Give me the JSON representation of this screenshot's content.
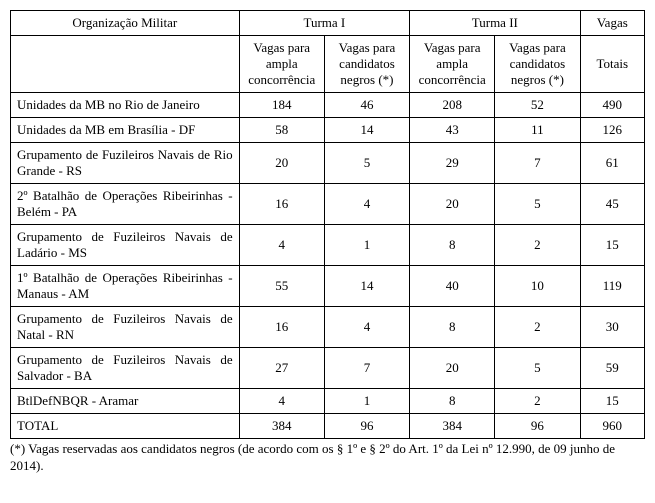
{
  "table": {
    "header": {
      "org": "Organização Militar",
      "turma1": "Turma I",
      "turma2": "Turma II",
      "vagas": "Vagas",
      "sub_ampla": "Vagas para ampla concorrência",
      "sub_ampla2": "Vagas para ampla concorrência",
      "sub_negros": "Vagas para candidatos negros (*)",
      "totais": "Totais"
    },
    "rows": [
      {
        "org": "Unidades da MB no Rio de Janeiro",
        "t1a": "184",
        "t1n": "46",
        "t2a": "208",
        "t2n": "52",
        "tot": "490"
      },
      {
        "org": "Unidades da MB em Brasília - DF",
        "t1a": "58",
        "t1n": "14",
        "t2a": "43",
        "t2n": "11",
        "tot": "126"
      },
      {
        "org": "Grupamento de Fuzileiros Navais de Rio Grande - RS",
        "t1a": "20",
        "t1n": "5",
        "t2a": "29",
        "t2n": "7",
        "tot": "61"
      },
      {
        "org": "2º Batalhão de Operações Ribeirinhas - Belém - PA",
        "t1a": "16",
        "t1n": "4",
        "t2a": "20",
        "t2n": "5",
        "tot": "45"
      },
      {
        "org": "Grupamento de Fuzileiros Navais de Ladário - MS",
        "t1a": "4",
        "t1n": "1",
        "t2a": "8",
        "t2n": "2",
        "tot": "15"
      },
      {
        "org": "1º Batalhão de Operações Ribeirinhas - Manaus - AM",
        "t1a": "55",
        "t1n": "14",
        "t2a": "40",
        "t2n": "10",
        "tot": "119"
      },
      {
        "org": "Grupamento de Fuzileiros Navais de Natal - RN",
        "t1a": "16",
        "t1n": "4",
        "t2a": "8",
        "t2n": "2",
        "tot": "30"
      },
      {
        "org": "Grupamento de Fuzileiros Navais de Salvador - BA",
        "t1a": "27",
        "t1n": "7",
        "t2a": "20",
        "t2n": "5",
        "tot": "59"
      },
      {
        "org": "BtlDefNBQR - Aramar",
        "t1a": "4",
        "t1n": "1",
        "t2a": "8",
        "t2n": "2",
        "tot": "15"
      }
    ],
    "total": {
      "label": "TOTAL",
      "t1a": "384",
      "t1n": "96",
      "t2a": "384",
      "t2n": "96",
      "tot": "960"
    }
  },
  "footnote": "(*) Vagas reservadas aos candidatos negros (de acordo com os § 1º e § 2º do Art. 1º da Lei nº 12.990, de 09 junho de 2014)."
}
